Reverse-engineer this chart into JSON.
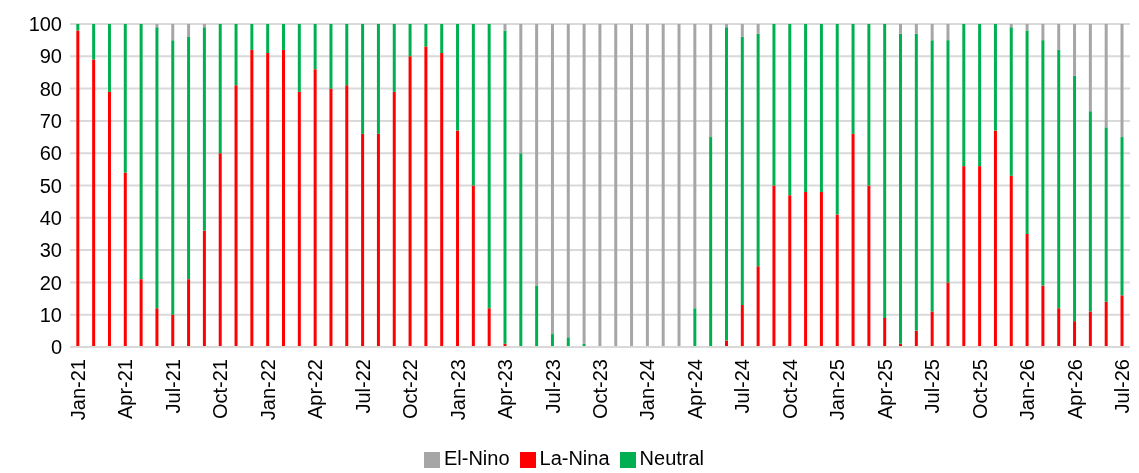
{
  "chart_data": {
    "type": "bar",
    "stacked": true,
    "categories": [
      "Jan-21",
      null,
      null,
      "Apr-21",
      null,
      null,
      "Jul-21",
      null,
      null,
      "Oct-21",
      null,
      null,
      "Jan-22",
      null,
      null,
      "Apr-22",
      null,
      null,
      "Jul-22",
      null,
      null,
      "Oct-22",
      null,
      null,
      "Jan-23",
      null,
      null,
      "Apr-23",
      null,
      null,
      "Jul-23",
      null,
      null,
      "Oct-23",
      null,
      null,
      "Jan-24",
      null,
      null,
      "Apr-24",
      null,
      null,
      "Jul-24",
      null,
      null,
      "Oct-24",
      null,
      null,
      "Jan-25",
      null,
      null,
      "Apr-25",
      null,
      null,
      "Jul-25",
      null,
      null,
      "Oct-25",
      null,
      null,
      "Jan-26",
      null,
      null,
      "Apr-26",
      null,
      null,
      "Jul-26"
    ],
    "series": [
      {
        "name": "La-Nina",
        "color": "#ff0000",
        "values": [
          98,
          89,
          79,
          54,
          21,
          12,
          10,
          21,
          36,
          60,
          81,
          92,
          91,
          92,
          79,
          86,
          80,
          81,
          66,
          66,
          79,
          90,
          93,
          91,
          67,
          50,
          12,
          1,
          0,
          0,
          0,
          0,
          0,
          0,
          0,
          0,
          0,
          0,
          0,
          0,
          0,
          2,
          13,
          25,
          50,
          47,
          48,
          48,
          41,
          66,
          50,
          9,
          1,
          5,
          11,
          20,
          56,
          56,
          67,
          53,
          35,
          19,
          12,
          8,
          11,
          14,
          16
        ]
      },
      {
        "name": "Neutral",
        "color": "#00b050",
        "values": [
          2,
          11,
          21,
          46,
          79,
          87,
          85,
          75,
          63,
          40,
          19,
          8,
          9,
          8,
          21,
          14,
          20,
          19,
          34,
          34,
          21,
          10,
          7,
          9,
          33,
          50,
          88,
          97,
          60,
          19,
          4,
          3,
          1,
          0,
          0,
          0,
          0,
          0,
          0,
          12,
          65,
          97,
          83,
          72,
          50,
          53,
          52,
          52,
          59,
          34,
          50,
          91,
          96,
          92,
          84,
          75,
          44,
          44,
          33,
          46,
          63,
          76,
          80,
          76,
          62,
          54,
          49
        ]
      },
      {
        "name": "El-Nino",
        "color": "#a6a6a6",
        "values": [
          0,
          0,
          0,
          0,
          0,
          1,
          5,
          4,
          1,
          0,
          0,
          0,
          0,
          0,
          0,
          0,
          0,
          0,
          0,
          0,
          0,
          0,
          0,
          0,
          0,
          0,
          0,
          2,
          40,
          81,
          96,
          97,
          99,
          100,
          100,
          100,
          100,
          100,
          100,
          88,
          35,
          1,
          4,
          3,
          0,
          0,
          0,
          0,
          0,
          0,
          0,
          0,
          3,
          3,
          5,
          5,
          0,
          0,
          0,
          1,
          2,
          5,
          8,
          16,
          27,
          32,
          35
        ]
      }
    ],
    "ylim": [
      0,
      100
    ],
    "yticks": [
      0,
      10,
      20,
      30,
      40,
      50,
      60,
      70,
      80,
      90,
      100
    ],
    "grid": "y",
    "legend": "bottom"
  }
}
